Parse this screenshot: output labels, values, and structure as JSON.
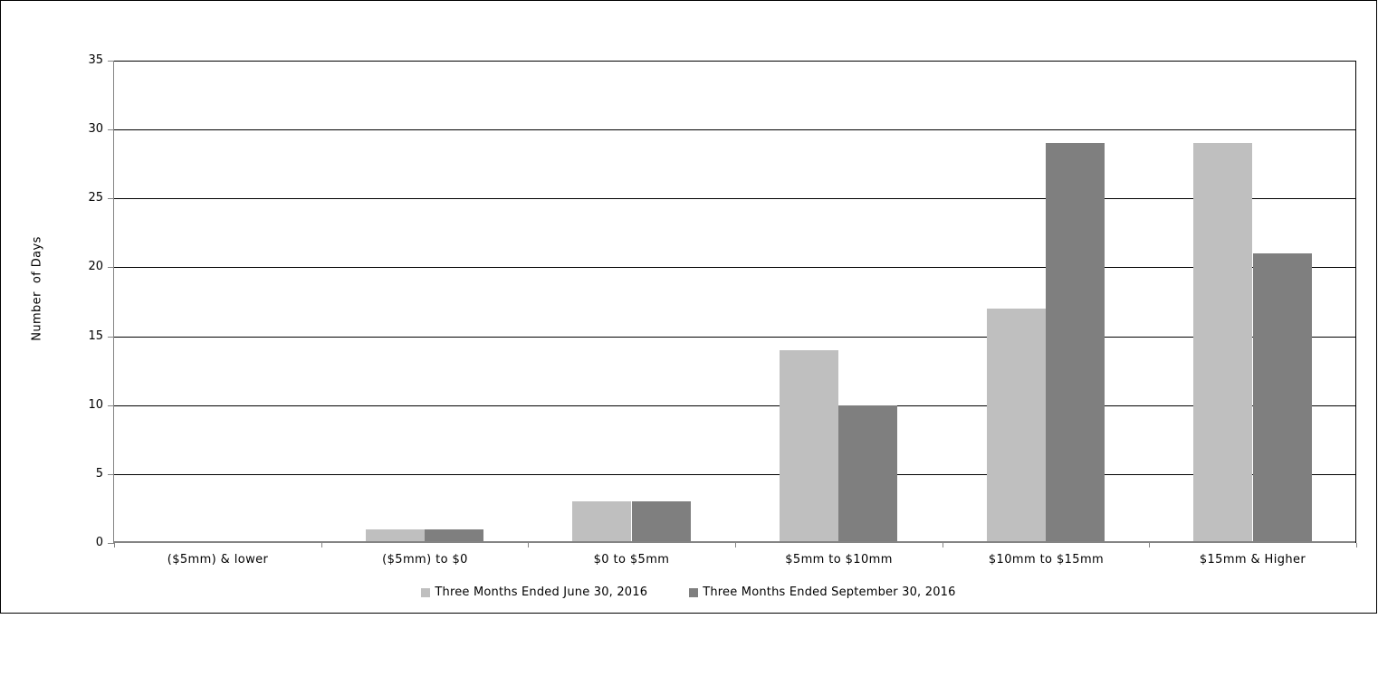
{
  "colors": {
    "background": "#ffffff",
    "frame_border": "#000000",
    "gridline": "#000000",
    "axis": "#848484",
    "plot_right_border": "#000000",
    "series_light": "#bfbfbf",
    "series_dark": "#7f7f7f",
    "text": "#000000"
  },
  "chart_data": {
    "type": "bar",
    "title": "",
    "xlabel": "",
    "ylabel": "Number  of Days",
    "ylim": [
      0,
      35
    ],
    "yticks": [
      0,
      5,
      10,
      15,
      20,
      25,
      30,
      35
    ],
    "grid": true,
    "legend_position": "bottom",
    "categories": [
      "($5mm) & lower",
      "($5mm) to $0",
      "$0 to $5mm",
      "$5mm to $10mm",
      "$10mm to $15mm",
      "$15mm & Higher"
    ],
    "series": [
      {
        "name": "Three Months Ended June 30, 2016",
        "color": "#bfbfbf",
        "values": [
          0,
          1,
          3,
          14,
          17,
          29
        ]
      },
      {
        "name": "Three Months Ended September 30, 2016",
        "color": "#7f7f7f",
        "values": [
          0,
          1,
          3,
          10,
          29,
          21
        ]
      }
    ]
  }
}
